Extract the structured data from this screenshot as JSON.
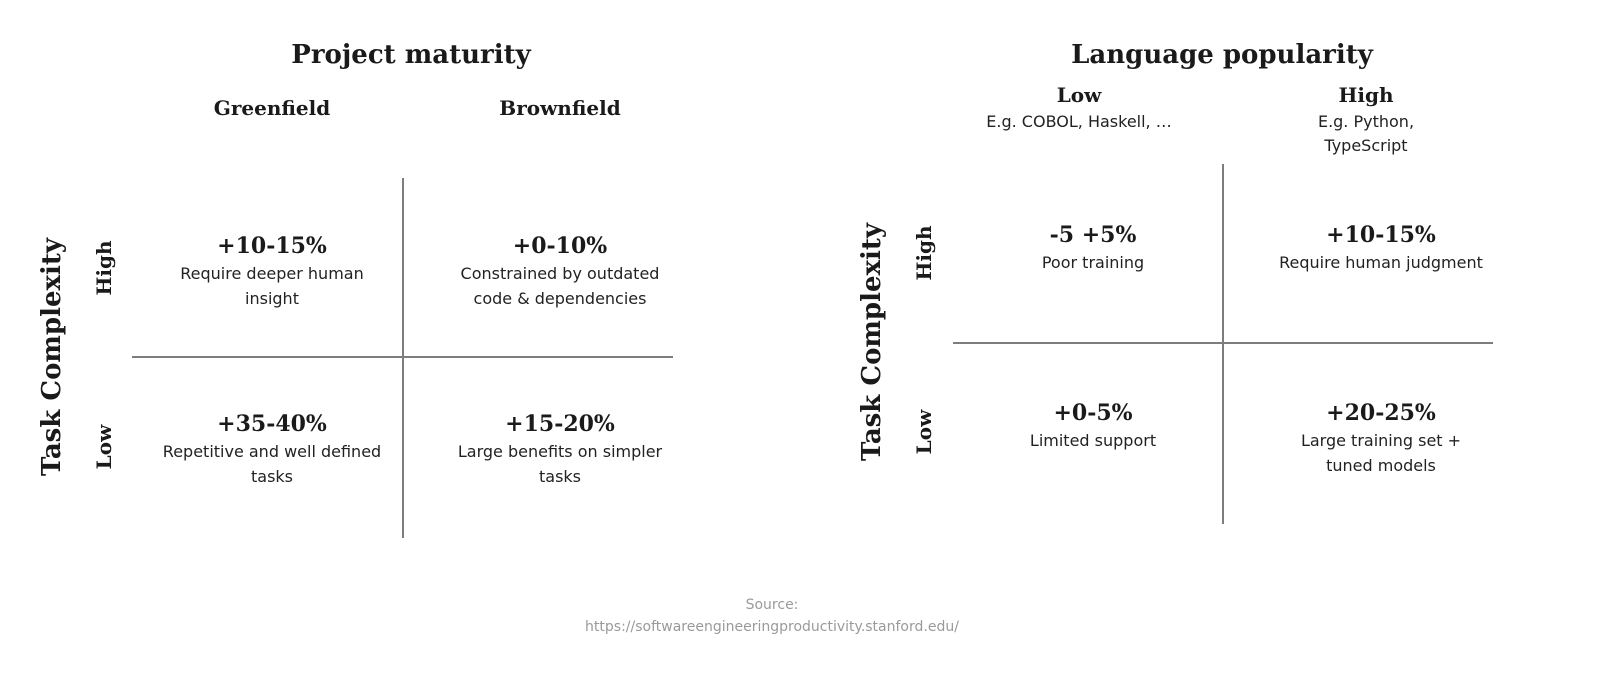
{
  "left": {
    "title": "Project maturity",
    "y_axis": "Task Complexity",
    "columns": [
      "Greenfield",
      "Brownfield"
    ],
    "rows": [
      "High",
      "Low"
    ],
    "cells": {
      "high_greenfield": {
        "value": "+10-15%",
        "desc": "Require deeper human insight"
      },
      "high_brownfield": {
        "value": "+0-10%",
        "desc": "Constrained by outdated code & dependencies"
      },
      "low_greenfield": {
        "value": "+35-40%",
        "desc": "Repetitive and well defined tasks"
      },
      "low_brownfield": {
        "value": "+15-20%",
        "desc": "Large benefits on simpler tasks"
      }
    }
  },
  "right": {
    "title": "Language popularity",
    "y_axis": "Task Complexity",
    "columns": [
      {
        "label": "Low",
        "sub": "E.g. COBOL, Haskell, …"
      },
      {
        "label": "High",
        "sub": "E.g. Python, TypeScript"
      }
    ],
    "rows": [
      "High",
      "Low"
    ],
    "cells": {
      "high_low": {
        "value": "-5 +5%",
        "desc": "Poor training"
      },
      "high_high": {
        "value": "+10-15%",
        "desc": "Require human judgment"
      },
      "low_low": {
        "value": "+0-5%",
        "desc": "Limited support"
      },
      "low_high": {
        "value": "+20-25%",
        "desc": "Large training set + tuned models"
      }
    }
  },
  "source": {
    "label": "Source:",
    "url": "https://softwareengineeringproductivity.stanford.edu/"
  }
}
